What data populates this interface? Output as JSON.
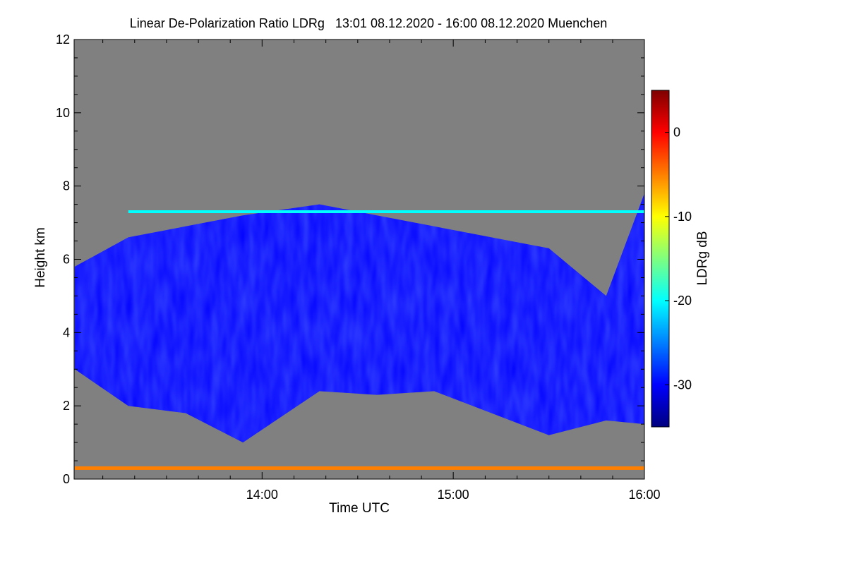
{
  "chart_data": {
    "type": "heatmap",
    "title": "Linear De-Polarization Ratio LDRg   13:01 08.12.2020 - 16:00 08.12.2020 Muenchen",
    "xlabel": "Time UTC",
    "ylabel": "Height km",
    "colorbar_label": "LDRg dB",
    "x_range_hours": [
      13.0167,
      16.0
    ],
    "x_ticks": [
      {
        "value": 14.0,
        "label": "14:00"
      },
      {
        "value": 15.0,
        "label": "15:00"
      },
      {
        "value": 16.0,
        "label": "16:00"
      }
    ],
    "x_minor_step_hours": 0.1667,
    "y_range_km": [
      0,
      12
    ],
    "y_ticks": [
      0,
      2,
      4,
      6,
      8,
      10,
      12
    ],
    "y_minor_step_km": 0.5,
    "colorbar_range_db": [
      -35,
      5
    ],
    "colorbar_ticks": [
      0,
      -10,
      -20,
      -30
    ],
    "colormap": [
      "#00007f",
      "#0000ff",
      "#007fff",
      "#00ffff",
      "#7fff7f",
      "#ffff00",
      "#ff7f00",
      "#ff0000",
      "#7f0000"
    ],
    "background_color": "#808080",
    "features": [
      {
        "name": "cirrus cloud layer",
        "height_bottom_km": [
          3.0,
          2.0,
          1.8,
          1.0,
          2.4,
          2.3,
          2.4,
          1.8,
          1.2,
          1.6,
          1.5
        ],
        "height_top_km": [
          5.8,
          6.6,
          6.9,
          7.2,
          7.5,
          7.2,
          6.9,
          6.6,
          6.3,
          5.0,
          7.8
        ],
        "x_hours": [
          13.02,
          13.3,
          13.6,
          13.9,
          14.3,
          14.6,
          14.9,
          15.2,
          15.5,
          15.8,
          16.0
        ],
        "typical_ldr_db": -30
      },
      {
        "name": "upper thin layer",
        "height_km": 7.3,
        "x_from_hours": 13.3,
        "x_to_hours": 16.0,
        "typical_ldr_db": -18
      },
      {
        "name": "near-surface layer",
        "height_km": 0.3,
        "x_from_hours": 13.02,
        "x_to_hours": 16.0,
        "typical_ldr_db": -3
      }
    ]
  }
}
